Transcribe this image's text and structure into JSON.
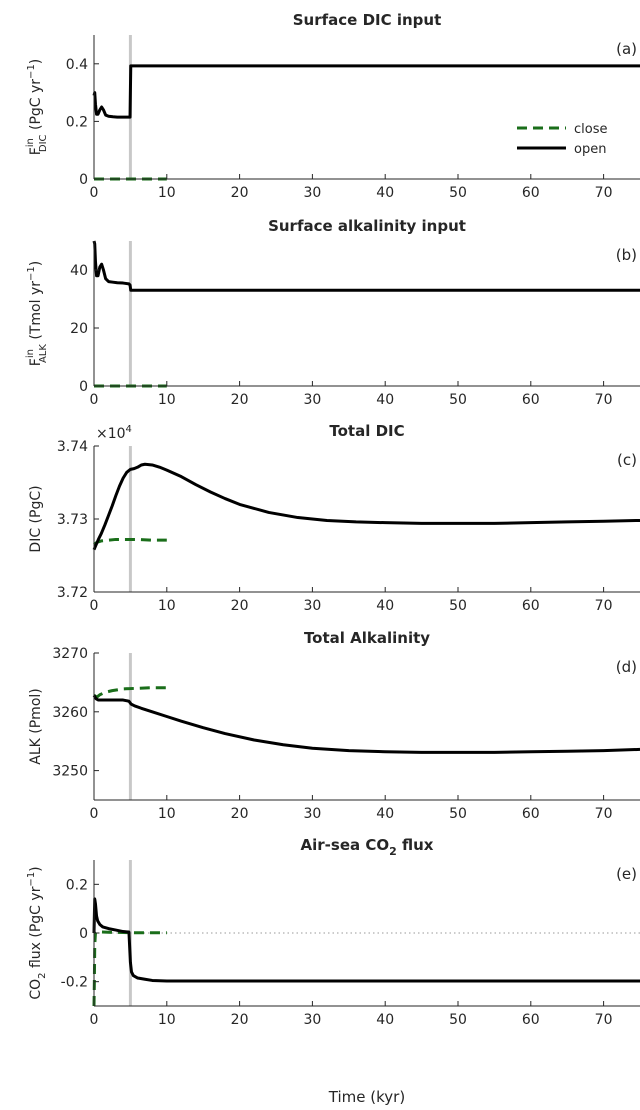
{
  "figure": {
    "xlabel": "Time (kyr)",
    "event_marker_x": 5,
    "colors": {
      "open": "#000000",
      "close": "#1a6e1a",
      "marker": "#c8c8c8",
      "axis": "#262626",
      "zero_line": "#9a9a9a"
    }
  },
  "legend": {
    "entries": [
      "close",
      "open"
    ],
    "location": "top-right of panel (a)"
  },
  "chart_data": [
    {
      "type": "line",
      "panel_label": "(a)",
      "title": "Surface DIC input",
      "ylabel_main": "F",
      "ylabel_sup": "in",
      "ylabel_sub": "DIC",
      "ylabel_unit": "(PgC yr",
      "ylabel_unit_sup": "−1",
      "ylabel_close": ")",
      "xlim": [
        0,
        75
      ],
      "ylim": [
        0,
        0.5
      ],
      "xticks": [
        0,
        10,
        20,
        30,
        40,
        50,
        60,
        70
      ],
      "yticks": [
        0,
        0.2,
        0.4
      ],
      "ytick_labels": [
        "0",
        "0.2",
        "0.4"
      ],
      "grid": false,
      "series": [
        {
          "name": "close",
          "style": "dashed",
          "x": [
            0,
            0.05,
            10
          ],
          "y": [
            0,
            0,
            0
          ]
        },
        {
          "name": "open",
          "style": "solid",
          "x": [
            0,
            0.1,
            0.2,
            0.35,
            0.55,
            0.8,
            1.05,
            1.3,
            1.6,
            2,
            2.6,
            3.2,
            4,
            4.8,
            4.95,
            5.05,
            10,
            20,
            30,
            40,
            50,
            60,
            70,
            75
          ],
          "y": [
            0.29,
            0.3,
            0.26,
            0.225,
            0.225,
            0.24,
            0.25,
            0.24,
            0.222,
            0.218,
            0.216,
            0.215,
            0.215,
            0.215,
            0.215,
            0.393,
            0.393,
            0.393,
            0.393,
            0.393,
            0.393,
            0.393,
            0.393,
            0.393
          ]
        }
      ]
    },
    {
      "type": "line",
      "panel_label": "(b)",
      "title": "Surface alkalinity input",
      "ylabel_main": "F",
      "ylabel_sup": "in",
      "ylabel_sub": "ALK",
      "ylabel_unit": "(Tmol yr",
      "ylabel_unit_sup": "−1",
      "ylabel_close": ")",
      "xlim": [
        0,
        75
      ],
      "ylim": [
        0,
        50
      ],
      "xticks": [
        0,
        10,
        20,
        30,
        40,
        50,
        60,
        70
      ],
      "yticks": [
        0,
        20,
        40
      ],
      "ytick_labels": [
        "0",
        "20",
        "40"
      ],
      "grid": false,
      "series": [
        {
          "name": "close",
          "style": "dashed",
          "x": [
            0,
            0.05,
            10
          ],
          "y": [
            0,
            0,
            0
          ]
        },
        {
          "name": "open",
          "style": "solid",
          "x": [
            0,
            0.1,
            0.2,
            0.35,
            0.55,
            0.8,
            1.05,
            1.3,
            1.6,
            2,
            2.6,
            3.2,
            4,
            4.8,
            4.95,
            5.05,
            10,
            20,
            30,
            40,
            50,
            60,
            70,
            75
          ],
          "y": [
            50,
            49,
            43,
            38,
            38,
            41,
            42,
            40,
            37,
            36,
            35.8,
            35.6,
            35.5,
            35.2,
            34.8,
            33,
            33,
            33,
            33,
            33,
            33,
            33,
            33,
            33
          ]
        }
      ]
    },
    {
      "type": "line",
      "panel_label": "(c)",
      "title": "Total DIC",
      "ylabel_main": "DIC (PgC)",
      "exponent_label": "×10",
      "exponent_power": "4",
      "xlim": [
        0,
        75
      ],
      "ylim": [
        3.72,
        3.74
      ],
      "xticks": [
        0,
        10,
        20,
        30,
        40,
        50,
        60,
        70
      ],
      "yticks": [
        3.72,
        3.73,
        3.74
      ],
      "ytick_labels": [
        "3.72",
        "3.73",
        "3.74"
      ],
      "grid": false,
      "series": [
        {
          "name": "close",
          "style": "dashed",
          "x": [
            0,
            0.4,
            1,
            2,
            3,
            4,
            5,
            6,
            8,
            10
          ],
          "y": [
            3.7265,
            3.7268,
            3.727,
            3.7271,
            3.7272,
            3.7272,
            3.7272,
            3.7272,
            3.7271,
            3.7271
          ]
        },
        {
          "name": "open",
          "style": "solid",
          "x": [
            0,
            0.3,
            0.6,
            1,
            1.5,
            2,
            2.5,
            3,
            3.5,
            4,
            4.5,
            5,
            5.5,
            6,
            6.5,
            7,
            8,
            9,
            10,
            12,
            14,
            16,
            18,
            20,
            24,
            28,
            32,
            36,
            40,
            45,
            50,
            55,
            60,
            65,
            70,
            75
          ],
          "y": [
            3.7258,
            3.7265,
            3.7272,
            3.728,
            3.7292,
            3.7305,
            3.7318,
            3.7332,
            3.7345,
            3.7356,
            3.7364,
            3.7368,
            3.7369,
            3.7371,
            3.7374,
            3.7375,
            3.7374,
            3.7371,
            3.7367,
            3.7358,
            3.7347,
            3.7337,
            3.7328,
            3.732,
            3.7309,
            3.7302,
            3.7298,
            3.7296,
            3.7295,
            3.7294,
            3.7294,
            3.7294,
            3.7295,
            3.7296,
            3.7297,
            3.7298
          ]
        }
      ]
    },
    {
      "type": "line",
      "panel_label": "(d)",
      "title": "Total Alkalinity",
      "ylabel_main": "ALK (Pmol)",
      "xlim": [
        0,
        75
      ],
      "ylim": [
        3245,
        3270
      ],
      "xticks": [
        0,
        10,
        20,
        30,
        40,
        50,
        60,
        70
      ],
      "yticks": [
        3250,
        3260,
        3270
      ],
      "ytick_labels": [
        "3250",
        "3260",
        "3270"
      ],
      "grid": false,
      "series": [
        {
          "name": "close",
          "style": "dashed",
          "x": [
            0,
            0.4,
            0.8,
            1.5,
            2.5,
            4,
            6,
            8,
            10
          ],
          "y": [
            3262.8,
            3262.5,
            3262.9,
            3263.3,
            3263.6,
            3263.9,
            3264.0,
            3264.1,
            3264.1
          ]
        },
        {
          "name": "open",
          "style": "solid",
          "x": [
            0,
            0.3,
            0.6,
            1,
            2,
            3,
            4,
            4.8,
            5.1,
            5.6,
            6.5,
            8,
            10,
            12,
            15,
            18,
            22,
            26,
            30,
            35,
            40,
            45,
            50,
            55,
            60,
            65,
            70,
            75
          ],
          "y": [
            3262.8,
            3262.2,
            3262.0,
            3262.0,
            3262.0,
            3262.0,
            3262.0,
            3261.8,
            3261.3,
            3261.0,
            3260.6,
            3260.0,
            3259.2,
            3258.4,
            3257.3,
            3256.3,
            3255.2,
            3254.4,
            3253.8,
            3253.4,
            3253.2,
            3253.1,
            3253.1,
            3253.1,
            3253.2,
            3253.3,
            3253.4,
            3253.6
          ]
        }
      ]
    },
    {
      "type": "line",
      "panel_label": "(e)",
      "title": "Air-sea CO",
      "title_sub": "2",
      "title_end": " flux",
      "ylabel_main": "CO",
      "ylabel_sub": "2",
      "ylabel_unit": " flux (PgC yr",
      "ylabel_unit_sup": "−1",
      "ylabel_close": ")",
      "xlim": [
        0,
        75
      ],
      "ylim": [
        -0.3,
        0.3
      ],
      "xticks": [
        0,
        10,
        20,
        30,
        40,
        50,
        60,
        70
      ],
      "yticks": [
        -0.2,
        0,
        0.2
      ],
      "ytick_labels": [
        "-0.2",
        "0",
        "0.2"
      ],
      "grid": false,
      "zero_line": true,
      "series": [
        {
          "name": "close",
          "style": "dashed",
          "x": [
            0,
            0.05,
            0.1,
            0.2,
            0.4,
            1,
            2,
            4,
            6,
            8,
            10
          ],
          "y": [
            -0.3,
            -0.2,
            -0.05,
            0.0,
            0.005,
            0.004,
            0.003,
            0.002,
            0.001,
            0.001,
            0.001
          ]
        },
        {
          "name": "open",
          "style": "solid",
          "x": [
            0,
            0.1,
            0.2,
            0.35,
            0.5,
            0.8,
            1.2,
            2,
            3,
            4,
            4.8,
            5.0,
            5.15,
            5.4,
            6,
            7,
            8,
            10,
            20,
            30,
            40,
            50,
            60,
            70,
            75
          ],
          "y": [
            0.0,
            0.14,
            0.12,
            0.07,
            0.05,
            0.035,
            0.025,
            0.018,
            0.012,
            0.006,
            0.004,
            -0.12,
            -0.16,
            -0.175,
            -0.185,
            -0.19,
            -0.195,
            -0.197,
            -0.197,
            -0.197,
            -0.197,
            -0.197,
            -0.197,
            -0.197,
            -0.197
          ]
        }
      ]
    }
  ]
}
